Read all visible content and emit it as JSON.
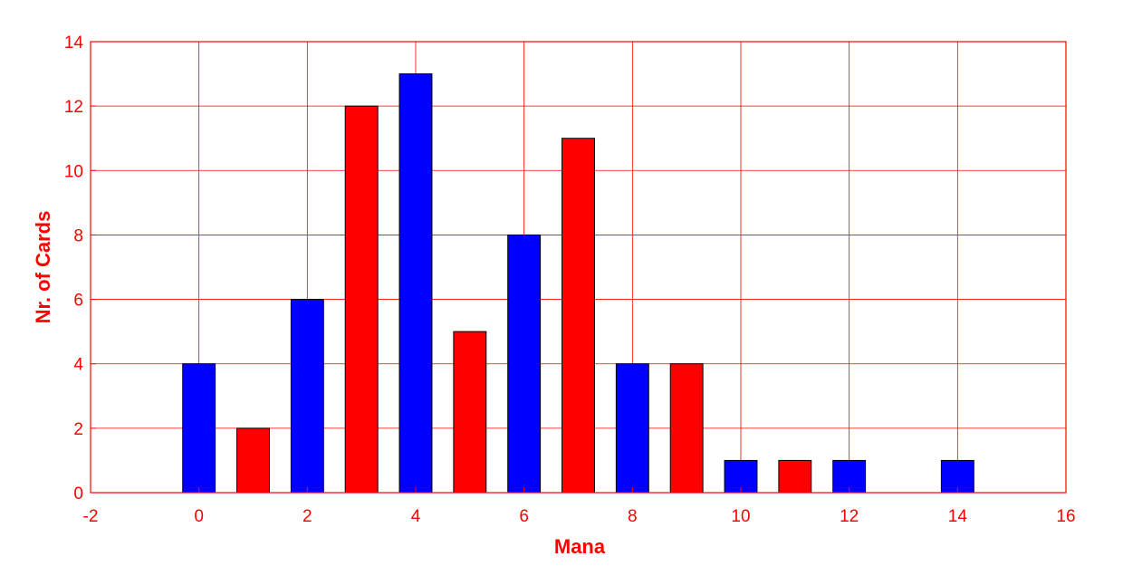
{
  "chart_data": {
    "type": "bar",
    "xlabel": "Mana",
    "ylabel": "Nr. of Cards",
    "xlim": [
      -2,
      16
    ],
    "ylim": [
      0,
      14
    ],
    "xticks": [
      "-2",
      "0",
      "2",
      "4",
      "6",
      "8",
      "10",
      "12",
      "14",
      "16"
    ],
    "yticks": [
      "0",
      "2",
      "4",
      "6",
      "8",
      "10",
      "12",
      "14"
    ],
    "grid": true,
    "bar_width": 0.6,
    "bars": [
      {
        "x": 0,
        "value": 4,
        "color": "#0000ff"
      },
      {
        "x": 1,
        "value": 2,
        "color": "#ff0000"
      },
      {
        "x": 2,
        "value": 6,
        "color": "#0000ff"
      },
      {
        "x": 3,
        "value": 12,
        "color": "#ff0000"
      },
      {
        "x": 4,
        "value": 13,
        "color": "#0000ff"
      },
      {
        "x": 5,
        "value": 5,
        "color": "#ff0000"
      },
      {
        "x": 6,
        "value": 8,
        "color": "#0000ff"
      },
      {
        "x": 7,
        "value": 11,
        "color": "#ff0000"
      },
      {
        "x": 8,
        "value": 4,
        "color": "#0000ff"
      },
      {
        "x": 9,
        "value": 4,
        "color": "#ff0000"
      },
      {
        "x": 10,
        "value": 1,
        "color": "#0000ff"
      },
      {
        "x": 11,
        "value": 1,
        "color": "#ff0000"
      },
      {
        "x": 12,
        "value": 1,
        "color": "#0000ff"
      },
      {
        "x": 13,
        "value": 0,
        "color": "#ff0000"
      },
      {
        "x": 14,
        "value": 1,
        "color": "#0000ff"
      },
      {
        "x": 15,
        "value": 0,
        "color": "#ff0000"
      }
    ]
  },
  "colors": {
    "axis": "#ff0000",
    "grid": "#ff0000",
    "bar_outline": "#000000",
    "background": "#ffffff"
  }
}
